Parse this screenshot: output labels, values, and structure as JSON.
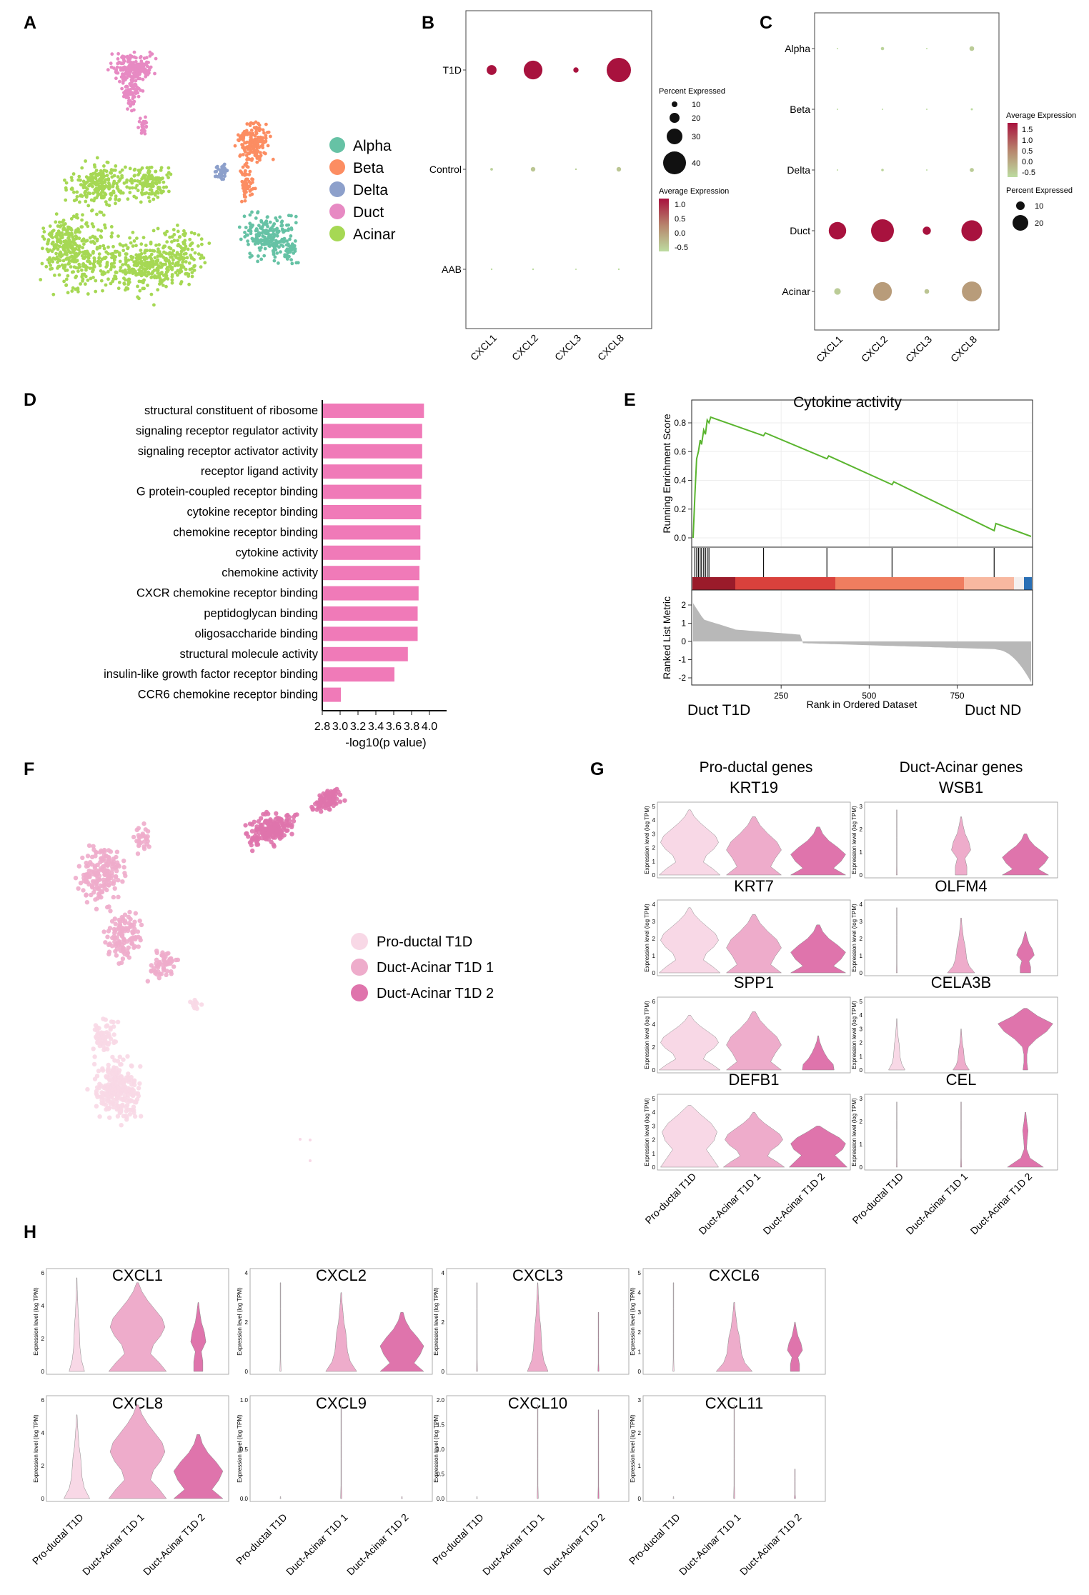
{
  "colors": {
    "alpha": "#66c2a5",
    "beta": "#fc8d62",
    "delta": "#8da0cb",
    "duct": "#e78ac3",
    "acinar": "#a6d854",
    "bar": "#f07ab8",
    "gsea_line": "#5ab52f",
    "hi": "#a8123e",
    "lo": "#bcdca0",
    "pro": "#f8d8e6",
    "da1": "#eeaccb",
    "da2": "#df74ac",
    "gray": "#b5b5b5"
  },
  "panels": {
    "A": "A",
    "B": "B",
    "C": "C",
    "D": "D",
    "E": "E",
    "F": "F",
    "G": "G",
    "H": "H"
  },
  "chart_data": [
    {
      "id": "A",
      "type": "scatter",
      "legend": [
        "Alpha",
        "Beta",
        "Delta",
        "Duct",
        "Acinar"
      ]
    },
    {
      "id": "B",
      "type": "dotplot",
      "rows": [
        "T1D",
        "Control",
        "AAB"
      ],
      "columns": [
        "CXCL1",
        "CXCL2",
        "CXCL3",
        "CXCL8"
      ],
      "percent": [
        [
          7,
          25,
          2,
          42
        ],
        [
          0.5,
          1.5,
          0.2,
          1.5
        ],
        [
          0.2,
          0.2,
          0.1,
          0.2
        ]
      ],
      "average": [
        [
          1.0,
          1.0,
          1.0,
          1.0
        ],
        [
          -0.5,
          -0.4,
          -0.5,
          -0.4
        ],
        [
          -0.6,
          -0.6,
          -0.6,
          -0.6
        ]
      ],
      "legend_size_title": "Percent Expressed",
      "legend_size_values": [
        "10",
        "20",
        "30",
        "40"
      ],
      "legend_color_title": "Average Expression",
      "legend_color_values": [
        "1.0",
        "0.5",
        "0.0",
        "-0.5"
      ]
    },
    {
      "id": "C",
      "type": "dotplot",
      "rows": [
        "Alpha",
        "Beta",
        "Delta",
        "Duct",
        "Acinar"
      ],
      "columns": [
        "CXCL1",
        "CXCL2",
        "CXCL3",
        "CXCL8"
      ],
      "percent": [
        [
          0.1,
          0.5,
          0.1,
          1.0
        ],
        [
          0.1,
          0.1,
          0.1,
          0.2
        ],
        [
          0.1,
          0.3,
          0.1,
          0.8
        ],
        [
          14,
          24,
          3,
          20
        ],
        [
          2,
          16,
          1,
          18
        ]
      ],
      "average": [
        [
          -0.6,
          -0.5,
          -0.6,
          -0.4
        ],
        [
          -0.6,
          -0.6,
          -0.6,
          -0.6
        ],
        [
          -0.6,
          -0.5,
          -0.6,
          -0.4
        ],
        [
          1.6,
          1.6,
          1.6,
          1.6
        ],
        [
          -0.4,
          0.2,
          -0.3,
          0.2
        ]
      ],
      "legend_color_title": "Average Expression",
      "legend_color_values": [
        "1.5",
        "1.0",
        "0.5",
        "0.0",
        "-0.5"
      ],
      "legend_size_title": "Percent Expressed",
      "legend_size_values": [
        "10",
        "20"
      ]
    },
    {
      "id": "D",
      "type": "bar",
      "categories": [
        "structural constituent of ribosome",
        "signaling receptor regulator activity",
        "signaling receptor activator activity",
        "receptor ligand activity",
        "G protein-coupled receptor binding",
        "cytokine receptor binding",
        "chemokine receptor binding",
        "cytokine activity",
        "chemokine activity",
        "CXCR chemokine receptor binding",
        "peptidoglycan binding",
        "oligosaccharide binding",
        "structural molecule activity",
        "insulin-like growth factor receptor binding",
        "CCR6 chemokine receptor binding"
      ],
      "values": [
        3.93,
        3.91,
        3.91,
        3.91,
        3.9,
        3.9,
        3.89,
        3.89,
        3.88,
        3.87,
        3.86,
        3.86,
        3.75,
        3.6,
        3.0
      ],
      "xlim": [
        2.8,
        4.0
      ],
      "xticks": [
        "2.8",
        "3.0",
        "3.2",
        "3.4",
        "3.6",
        "3.8",
        "4.0"
      ],
      "xlabel": "-log10(p value)"
    },
    {
      "id": "E",
      "type": "line",
      "title": "Cytokine activity",
      "ylabel": "Running Enrichment Score",
      "yticks": [
        "0.8",
        "0.6",
        "0.4",
        "0.2",
        "0.0"
      ],
      "es_x": [
        0,
        5,
        10,
        15,
        20,
        24,
        30,
        35,
        40,
        45,
        50,
        200,
        205,
        380,
        385,
        565,
        570,
        855,
        860,
        960
      ],
      "es_y": [
        0,
        0.3,
        0.55,
        0.6,
        0.68,
        0.65,
        0.75,
        0.72,
        0.82,
        0.8,
        0.84,
        0.71,
        0.73,
        0.55,
        0.57,
        0.37,
        0.39,
        0.05,
        0.1,
        0.01
      ],
      "hits": [
        5,
        10,
        15,
        20,
        24,
        30,
        35,
        40,
        45,
        200,
        380,
        565,
        855
      ],
      "rank_ylabel": "Ranked List Metric",
      "rank_yticks": [
        "2",
        "1",
        "0",
        "-1",
        "-2"
      ],
      "xticks": [
        "250",
        "500",
        "750"
      ],
      "xlabel": "Rank in Ordered Dataset",
      "left_label": "Duct T1D",
      "right_label": "Duct ND"
    },
    {
      "id": "F",
      "type": "scatter",
      "legend": [
        "Pro-ductal T1D",
        "Duct-Acinar T1D 1",
        "Duct-Acinar T1D 2"
      ]
    },
    {
      "id": "G",
      "type": "violin",
      "header_left": "Pro-ductal genes",
      "header_right": "Duct-Acinar genes",
      "ylabel": "Expression level (log TPM)",
      "groups": [
        "Pro-ductal T1D",
        "Duct-Acinar T1D 1",
        "Duct-Acinar T1D 2"
      ],
      "genes_left": [
        "KRT19",
        "KRT7",
        "SPP1",
        "DEFB1"
      ],
      "genes_right": [
        "WSB1",
        "OLFM4",
        "CELA3B",
        "CEL"
      ],
      "ymax_left": [
        5,
        4,
        6,
        5
      ],
      "ymax_right": [
        3,
        4,
        5,
        3
      ],
      "yticks_left": [
        [
          "0",
          "1",
          "2",
          "3",
          "4",
          "5"
        ],
        [
          "0",
          "1",
          "2",
          "3",
          "4"
        ],
        [
          "0",
          "2",
          "4",
          "6"
        ],
        [
          "0",
          "1",
          "2",
          "3",
          "4",
          "5"
        ]
      ],
      "yticks_right": [
        [
          "0",
          "1",
          "2",
          "3"
        ],
        [
          "0",
          "1",
          "2",
          "3",
          "4"
        ],
        [
          "0",
          "1",
          "2",
          "3",
          "4",
          "5"
        ],
        [
          "0",
          "1",
          "2",
          "3"
        ]
      ]
    },
    {
      "id": "H",
      "type": "violin",
      "ylabel": "Expression level (log TPM)",
      "groups": [
        "Pro-ductal T1D",
        "Duct-Acinar T1D 1",
        "Duct-Acinar T1D 2"
      ],
      "genes_row1": [
        "CXCL1",
        "CXCL2",
        "CXCL3",
        "CXCL6"
      ],
      "genes_row2": [
        "CXCL8",
        "CXCL9",
        "CXCL10",
        "CXCL11"
      ],
      "yticks_row1": [
        [
          "0",
          "2",
          "4",
          "6"
        ],
        [
          "0",
          "2",
          "4"
        ],
        [
          "0",
          "2",
          "4"
        ],
        [
          "0",
          "1",
          "2",
          "3",
          "4",
          "5"
        ]
      ],
      "yticks_row2": [
        [
          "0",
          "2",
          "4",
          "6"
        ],
        [
          "0.0",
          "0.5",
          "1.0"
        ],
        [
          "0.0",
          "0.5",
          "1.0",
          "1.5",
          "2.0"
        ],
        [
          "0",
          "1",
          "2",
          "3"
        ]
      ]
    }
  ]
}
